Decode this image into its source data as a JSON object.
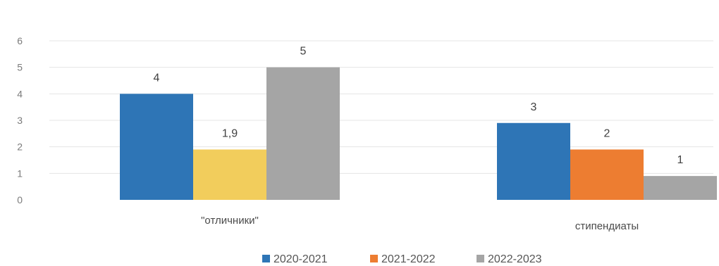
{
  "chart_data": {
    "type": "bar",
    "title": "",
    "xlabel": "",
    "ylabel": "",
    "ylim": [
      0,
      6
    ],
    "yticks": [
      "0",
      "1",
      "2",
      "3",
      "4",
      "5",
      "6"
    ],
    "categories": [
      "\"отличники\"",
      "стипендиаты"
    ],
    "series": [
      {
        "name": "2020-2021",
        "color": "#2e75b6",
        "values": [
          4,
          2.9
        ],
        "labels": [
          "4",
          "3"
        ]
      },
      {
        "name": "2021-2022",
        "color": "#ed7d31",
        "values": [
          1.9,
          1.9
        ],
        "labels": [
          "1,9",
          "2"
        ]
      },
      {
        "name": "2022-2023",
        "color": "#a5a5a5",
        "values": [
          5,
          0.9
        ],
        "labels": [
          "5",
          "1"
        ]
      }
    ],
    "bar_colors_override": {
      "0_1": "#f2cd5c"
    },
    "grid": true,
    "legend_position": "bottom"
  }
}
